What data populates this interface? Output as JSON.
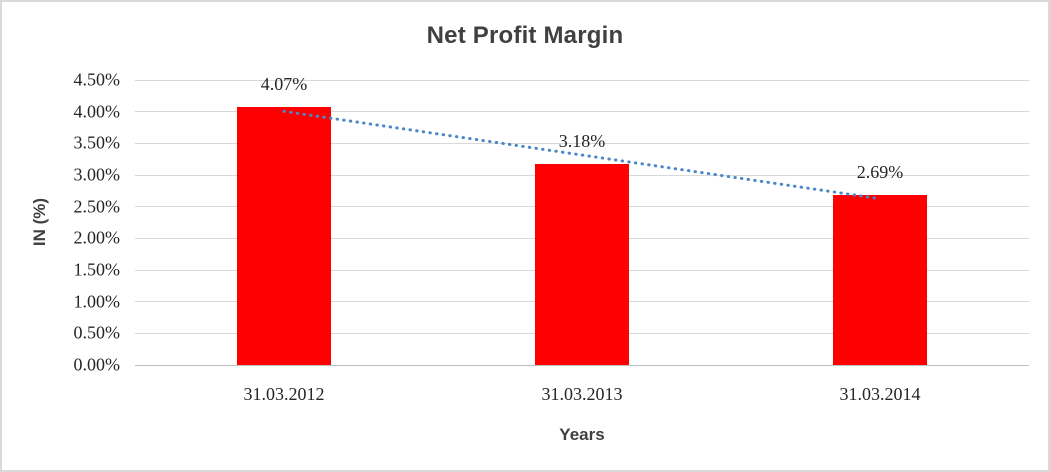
{
  "window": {
    "background": "#FFFFFF",
    "border_color": "#D9D9D9"
  },
  "chart_data": {
    "type": "bar",
    "title": "Net Profit Margin",
    "xlabel": "Years",
    "ylabel": "IN (%)",
    "categories": [
      "31.03.2012",
      "31.03.2013",
      "31.03.2014"
    ],
    "series": [
      {
        "name": "Net Profit Margin",
        "values": [
          4.07,
          3.18,
          2.69
        ]
      }
    ],
    "data_labels": [
      "4.07%",
      "3.18%",
      "2.69%"
    ],
    "ylim": [
      0,
      4.5
    ],
    "ytick_step": 0.5,
    "yticks": [
      {
        "value": 0,
        "label": "0.00%"
      },
      {
        "value": 0.5,
        "label": "0.50%"
      },
      {
        "value": 1,
        "label": "1.00%"
      },
      {
        "value": 1.5,
        "label": "1.50%"
      },
      {
        "value": 2,
        "label": "2.00%"
      },
      {
        "value": 2.5,
        "label": "2.50%"
      },
      {
        "value": 3,
        "label": "3.00%"
      },
      {
        "value": 3.5,
        "label": "3.50%"
      },
      {
        "value": 4,
        "label": "4.00%"
      },
      {
        "value": 4.5,
        "label": "4.50%"
      }
    ],
    "grid": true,
    "legend": "none",
    "colors": {
      "bar": "#FF0000",
      "trendline": "#4A86C8",
      "gridline": "#D9D9D9",
      "axis_line": "#BFBFBF",
      "tick_text": "#262626",
      "title_text": "#404040"
    },
    "trendline": {
      "type": "linear",
      "style": "dotted",
      "y_start": 4.005,
      "y_end": 2.625
    }
  }
}
